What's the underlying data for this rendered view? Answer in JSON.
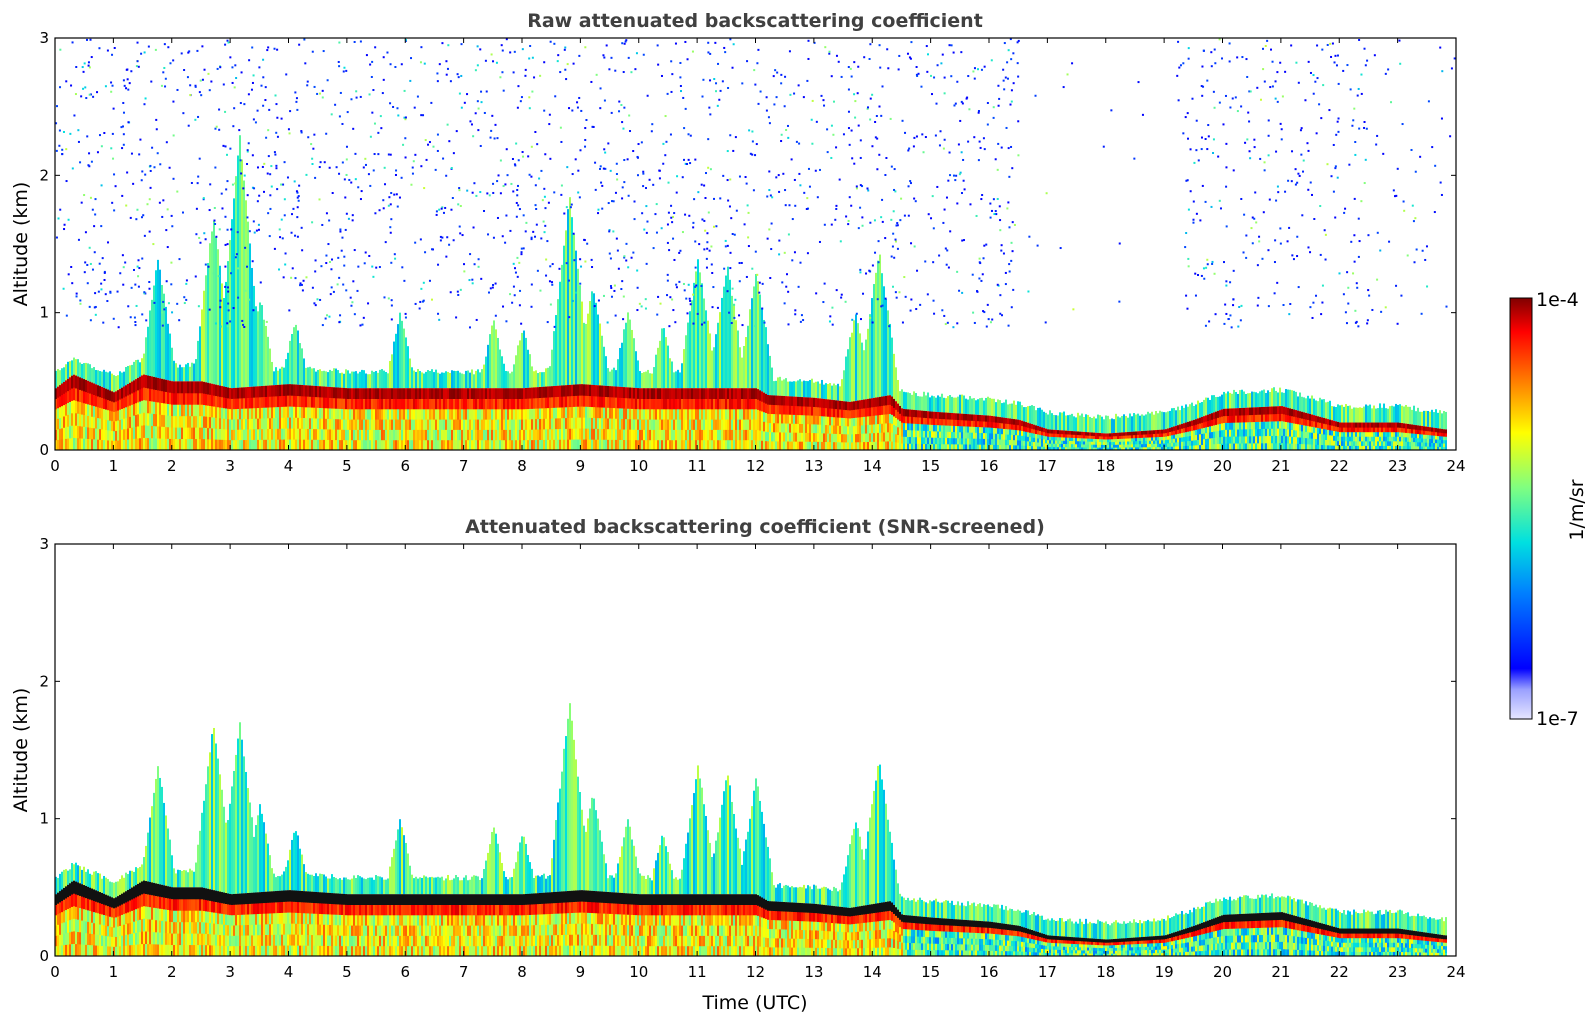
{
  "chart_data": [
    {
      "type": "heatmap",
      "title": "Raw attenuated backscattering coefficient",
      "xlabel": "",
      "ylabel": "Altitude (km)",
      "xlim": [
        0,
        24
      ],
      "ylim": [
        0,
        3
      ],
      "xticks": [
        "0",
        "1",
        "2",
        "3",
        "4",
        "5",
        "6",
        "7",
        "8",
        "9",
        "10",
        "11",
        "12",
        "13",
        "14",
        "15",
        "16",
        "17",
        "18",
        "19",
        "20",
        "21",
        "22",
        "23",
        "24"
      ],
      "yticks": [
        "0",
        "1",
        "2",
        "3"
      ],
      "colorscale": "jet",
      "noise": "high",
      "boundary_layer_top_km": [
        [
          0,
          0.45
        ],
        [
          0.3,
          0.55
        ],
        [
          1,
          0.42
        ],
        [
          1.5,
          0.55
        ],
        [
          2,
          0.5
        ],
        [
          2.5,
          0.5
        ],
        [
          3,
          0.45
        ],
        [
          4,
          0.48
        ],
        [
          5,
          0.45
        ],
        [
          6,
          0.45
        ],
        [
          7,
          0.45
        ],
        [
          8,
          0.45
        ],
        [
          9,
          0.48
        ],
        [
          10,
          0.45
        ],
        [
          11,
          0.45
        ],
        [
          12,
          0.45
        ],
        [
          12.2,
          0.4
        ],
        [
          13,
          0.38
        ],
        [
          13.6,
          0.35
        ],
        [
          14.3,
          0.4
        ],
        [
          14.5,
          0.3
        ],
        [
          15,
          0.28
        ],
        [
          16,
          0.25
        ],
        [
          16.5,
          0.22
        ],
        [
          17,
          0.15
        ],
        [
          18,
          0.12
        ],
        [
          19,
          0.15
        ],
        [
          19.5,
          0.22
        ],
        [
          20,
          0.3
        ],
        [
          21,
          0.32
        ],
        [
          22,
          0.2
        ],
        [
          23,
          0.2
        ],
        [
          23.8,
          0.15
        ]
      ],
      "plumes": [
        {
          "t": 1.75,
          "top_km": 1.4
        },
        {
          "t": 2.7,
          "top_km": 1.7
        },
        {
          "t": 3.15,
          "top_km": 2.3
        },
        {
          "t": 3.5,
          "top_km": 1.1
        },
        {
          "t": 4.1,
          "top_km": 0.95
        },
        {
          "t": 5.9,
          "top_km": 1.0
        },
        {
          "t": 7.5,
          "top_km": 0.95
        },
        {
          "t": 8.0,
          "top_km": 0.9
        },
        {
          "t": 8.8,
          "top_km": 1.85
        },
        {
          "t": 9.2,
          "top_km": 1.2
        },
        {
          "t": 9.8,
          "top_km": 1.0
        },
        {
          "t": 10.4,
          "top_km": 0.9
        },
        {
          "t": 11.0,
          "top_km": 1.4
        },
        {
          "t": 11.5,
          "top_km": 1.35
        },
        {
          "t": 12.0,
          "top_km": 1.3
        },
        {
          "t": 13.7,
          "top_km": 1.0
        },
        {
          "t": 14.1,
          "top_km": 1.45
        }
      ]
    },
    {
      "type": "heatmap",
      "title": "Attenuated backscattering coefficient (SNR-screened)",
      "xlabel": "Time (UTC)",
      "ylabel": "Altitude (km)",
      "xlim": [
        0,
        24
      ],
      "ylim": [
        0,
        3
      ],
      "xticks": [
        "0",
        "1",
        "2",
        "3",
        "4",
        "5",
        "6",
        "7",
        "8",
        "9",
        "10",
        "11",
        "12",
        "13",
        "14",
        "15",
        "16",
        "17",
        "18",
        "19",
        "20",
        "21",
        "22",
        "23",
        "24"
      ],
      "yticks": [
        "0",
        "1",
        "2",
        "3"
      ],
      "colorscale": "jet",
      "noise": "none",
      "boundary_layer_top_km": [
        [
          0,
          0.45
        ],
        [
          0.3,
          0.55
        ],
        [
          1,
          0.42
        ],
        [
          1.5,
          0.55
        ],
        [
          2,
          0.5
        ],
        [
          2.5,
          0.5
        ],
        [
          3,
          0.45
        ],
        [
          4,
          0.48
        ],
        [
          5,
          0.45
        ],
        [
          6,
          0.45
        ],
        [
          7,
          0.45
        ],
        [
          8,
          0.45
        ],
        [
          9,
          0.48
        ],
        [
          10,
          0.45
        ],
        [
          11,
          0.45
        ],
        [
          12,
          0.45
        ],
        [
          12.2,
          0.4
        ],
        [
          13,
          0.38
        ],
        [
          13.6,
          0.35
        ],
        [
          14.3,
          0.4
        ],
        [
          14.5,
          0.3
        ],
        [
          15,
          0.28
        ],
        [
          16,
          0.25
        ],
        [
          16.5,
          0.22
        ],
        [
          17,
          0.15
        ],
        [
          18,
          0.12
        ],
        [
          19,
          0.15
        ],
        [
          19.5,
          0.22
        ],
        [
          20,
          0.3
        ],
        [
          21,
          0.32
        ],
        [
          22,
          0.2
        ],
        [
          23,
          0.2
        ],
        [
          23.8,
          0.15
        ]
      ],
      "plumes": [
        {
          "t": 1.75,
          "top_km": 1.4
        },
        {
          "t": 2.7,
          "top_km": 1.7
        },
        {
          "t": 3.15,
          "top_km": 1.7
        },
        {
          "t": 3.5,
          "top_km": 1.1
        },
        {
          "t": 4.1,
          "top_km": 0.95
        },
        {
          "t": 5.9,
          "top_km": 1.0
        },
        {
          "t": 7.5,
          "top_km": 0.95
        },
        {
          "t": 8.0,
          "top_km": 0.9
        },
        {
          "t": 8.8,
          "top_km": 1.85
        },
        {
          "t": 9.2,
          "top_km": 1.2
        },
        {
          "t": 9.8,
          "top_km": 1.0
        },
        {
          "t": 10.4,
          "top_km": 0.9
        },
        {
          "t": 11.0,
          "top_km": 1.4
        },
        {
          "t": 11.5,
          "top_km": 1.35
        },
        {
          "t": 12.0,
          "top_km": 1.3
        },
        {
          "t": 13.7,
          "top_km": 1.0
        },
        {
          "t": 14.1,
          "top_km": 1.45
        }
      ]
    }
  ],
  "colorbar": {
    "label": "1/m/sr",
    "max_label": "1e-4",
    "min_label": "1e-7",
    "colorscale": "jet"
  }
}
